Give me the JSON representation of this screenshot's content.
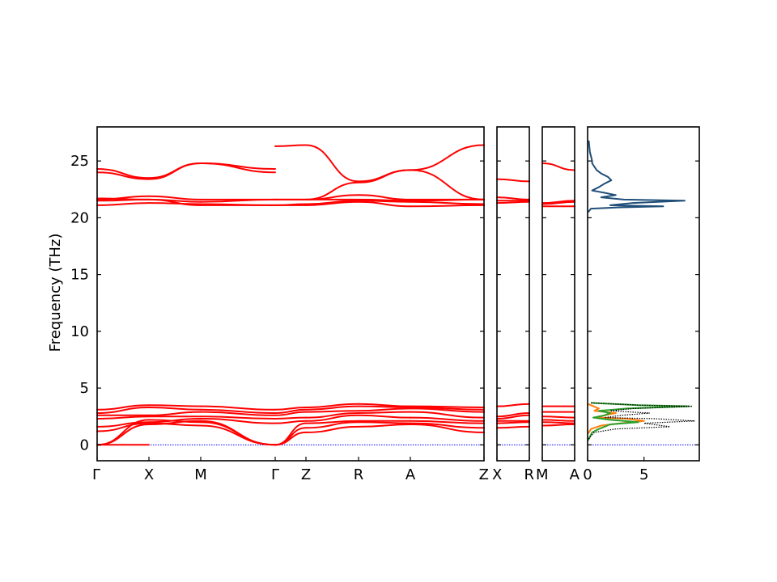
{
  "chart_data": {
    "type": "line",
    "title": "",
    "ylabel": "Frequency (THz)",
    "ylim": [
      -1.4,
      28
    ],
    "yticks": [
      0,
      5,
      10,
      15,
      20,
      25
    ],
    "band_color": "#ff0000",
    "zero_line_color": "#0000ff",
    "panels": [
      {
        "ticks": [
          "Γ",
          "X",
          "M",
          "Γ",
          "Z",
          "R",
          "A",
          "Z"
        ],
        "segments": [
          {
            "from": "Γ",
            "to": "X",
            "bands": [
              [
                0.0,
                0.0
              ],
              [
                0.0,
                1.8
              ],
              [
                0.0,
                2.2
              ],
              [
                1.2,
                1.9
              ],
              [
                1.6,
                2.0
              ],
              [
                2.3,
                2.5
              ],
              [
                2.6,
                2.6
              ],
              [
                2.8,
                3.3
              ],
              [
                3.1,
                3.5
              ],
              [
                21.1,
                21.3
              ],
              [
                21.5,
                21.6
              ],
              [
                21.6,
                21.9
              ],
              [
                21.7,
                21.6
              ],
              [
                24.0,
                23.4
              ],
              [
                24.3,
                23.5
              ]
            ]
          },
          {
            "from": "X",
            "to": "M",
            "bands": [
              [
                1.8,
                2.1
              ],
              [
                2.2,
                2.0
              ],
              [
                1.9,
                1.7
              ],
              [
                2.0,
                2.3
              ],
              [
                2.5,
                2.5
              ],
              [
                2.6,
                2.9
              ],
              [
                3.3,
                3.1
              ],
              [
                3.5,
                3.4
              ],
              [
                21.3,
                21.2
              ],
              [
                21.6,
                21.1
              ],
              [
                21.9,
                21.6
              ],
              [
                21.6,
                21.4
              ],
              [
                23.4,
                24.8
              ],
              [
                23.5,
                24.8
              ]
            ]
          },
          {
            "from": "M",
            "to": "Γ",
            "bands": [
              [
                2.1,
                0.0
              ],
              [
                2.0,
                0.0
              ],
              [
                1.7,
                0.0
              ],
              [
                2.3,
                1.9
              ],
              [
                2.5,
                2.3
              ],
              [
                2.9,
                2.6
              ],
              [
                3.1,
                2.8
              ],
              [
                3.4,
                3.1
              ],
              [
                21.2,
                21.1
              ],
              [
                21.1,
                21.1
              ],
              [
                21.6,
                21.6
              ],
              [
                21.4,
                21.6
              ],
              [
                24.8,
                24.0
              ],
              [
                24.8,
                24.3
              ]
            ]
          },
          {
            "from": "Γ",
            "to": "Z",
            "bands": [
              [
                0.0,
                1.1
              ],
              [
                0.0,
                1.5
              ],
              [
                0.0,
                1.9
              ],
              [
                1.9,
                2.1
              ],
              [
                2.3,
                2.4
              ],
              [
                2.6,
                2.9
              ],
              [
                2.8,
                3.1
              ],
              [
                3.1,
                3.3
              ],
              [
                21.1,
                21.1
              ],
              [
                21.1,
                21.2
              ],
              [
                21.6,
                21.6
              ],
              [
                21.6,
                21.6
              ],
              [
                26.3,
                26.4
              ]
            ]
          },
          {
            "from": "Z",
            "to": "R",
            "bands": [
              [
                1.1,
                1.6
              ],
              [
                1.5,
                2.0
              ],
              [
                1.9,
                2.1
              ],
              [
                2.1,
                2.6
              ],
              [
                2.4,
                2.8
              ],
              [
                2.9,
                3.0
              ],
              [
                3.1,
                3.4
              ],
              [
                3.3,
                3.6
              ],
              [
                21.1,
                21.4
              ],
              [
                21.2,
                21.5
              ],
              [
                21.6,
                21.6
              ],
              [
                21.6,
                22.0
              ],
              [
                21.6,
                23.1
              ],
              [
                26.4,
                23.2
              ]
            ]
          },
          {
            "from": "R",
            "to": "A",
            "bands": [
              [
                1.6,
                1.8
              ],
              [
                2.0,
                1.9
              ],
              [
                2.1,
                2.1
              ],
              [
                2.6,
                2.4
              ],
              [
                2.8,
                2.9
              ],
              [
                3.0,
                3.2
              ],
              [
                3.4,
                3.3
              ],
              [
                3.6,
                3.4
              ],
              [
                21.4,
                21.0
              ],
              [
                21.5,
                21.4
              ],
              [
                21.6,
                21.5
              ],
              [
                22.0,
                21.6
              ],
              [
                23.1,
                24.2
              ],
              [
                23.2,
                24.2
              ]
            ]
          },
          {
            "from": "A",
            "to": "Z",
            "bands": [
              [
                1.8,
                1.1
              ],
              [
                1.9,
                1.5
              ],
              [
                2.1,
                1.9
              ],
              [
                2.4,
                2.1
              ],
              [
                2.9,
                2.4
              ],
              [
                3.2,
                2.9
              ],
              [
                3.3,
                3.1
              ],
              [
                3.4,
                3.3
              ],
              [
                21.0,
                21.1
              ],
              [
                21.4,
                21.2
              ],
              [
                21.5,
                21.6
              ],
              [
                21.6,
                21.6
              ],
              [
                24.2,
                21.6
              ],
              [
                24.2,
                26.4
              ]
            ]
          }
        ]
      },
      {
        "ticks": [
          "X",
          "R"
        ],
        "segments": [
          {
            "from": "X",
            "to": "R",
            "bands": [
              [
                1.5,
                1.6
              ],
              [
                1.9,
                2.0
              ],
              [
                2.1,
                2.1
              ],
              [
                2.3,
                2.6
              ],
              [
                2.5,
                2.8
              ],
              [
                3.4,
                3.6
              ],
              [
                21.3,
                21.4
              ],
              [
                21.5,
                21.5
              ],
              [
                21.8,
                21.6
              ],
              [
                23.4,
                23.2
              ]
            ]
          }
        ]
      },
      {
        "ticks": [
          "M",
          "A"
        ],
        "segments": [
          {
            "from": "M",
            "to": "A",
            "bands": [
              [
                1.7,
                1.8
              ],
              [
                2.0,
                1.9
              ],
              [
                2.2,
                2.1
              ],
              [
                2.5,
                2.4
              ],
              [
                2.9,
                2.9
              ],
              [
                3.4,
                3.4
              ],
              [
                21.0,
                21.0
              ],
              [
                21.2,
                21.4
              ],
              [
                21.3,
                21.5
              ],
              [
                24.8,
                24.2
              ]
            ]
          }
        ]
      }
    ],
    "dos": {
      "xlim": [
        0,
        9.9
      ],
      "xticks": [
        0,
        5
      ],
      "curves": [
        {
          "color": "#1f4e79",
          "points": [
            [
              0.1,
              26.8
            ],
            [
              0.2,
              25.8
            ],
            [
              0.4,
              25.0
            ],
            [
              0.4,
              24.8
            ],
            [
              0.8,
              24.2
            ],
            [
              1.2,
              23.9
            ],
            [
              1.8,
              23.6
            ],
            [
              2.1,
              23.3
            ],
            [
              1.5,
              23.0
            ],
            [
              1.0,
              22.7
            ],
            [
              0.4,
              22.4
            ],
            [
              1.5,
              22.2
            ],
            [
              2.5,
              22.0
            ],
            [
              1.2,
              21.8
            ],
            [
              3.2,
              21.6
            ],
            [
              8.6,
              21.5
            ],
            [
              4.0,
              21.3
            ],
            [
              2.0,
              21.1
            ],
            [
              6.7,
              21.0
            ],
            [
              2.5,
              20.9
            ],
            [
              0.3,
              20.8
            ],
            [
              0.05,
              20.5
            ]
          ]
        },
        {
          "color": "#ff7f0e",
          "points": [
            [
              0.05,
              3.6
            ],
            [
              1.0,
              3.2
            ],
            [
              0.6,
              3.0
            ],
            [
              2.5,
              2.8
            ],
            [
              1.5,
              2.6
            ],
            [
              0.8,
              2.4
            ],
            [
              3.5,
              2.3
            ],
            [
              5.0,
              2.1
            ],
            [
              3.0,
              1.9
            ],
            [
              1.2,
              1.7
            ],
            [
              0.3,
              1.4
            ],
            [
              0.05,
              1.0
            ]
          ]
        },
        {
          "color": "#2ca02c",
          "points": [
            [
              0.3,
              3.7
            ],
            [
              4.5,
              3.5
            ],
            [
              9.0,
              3.4
            ],
            [
              3.5,
              3.2
            ],
            [
              1.0,
              3.0
            ],
            [
              2.0,
              2.8
            ],
            [
              1.5,
              2.6
            ],
            [
              0.5,
              2.4
            ],
            [
              2.0,
              2.2
            ],
            [
              4.5,
              2.0
            ],
            [
              2.0,
              1.8
            ],
            [
              1.5,
              1.6
            ],
            [
              1.0,
              1.4
            ],
            [
              0.4,
              1.1
            ],
            [
              0.2,
              0.7
            ],
            [
              0.05,
              0.4
            ]
          ]
        },
        {
          "color": "#000000",
          "total": true,
          "points": [
            [
              0.3,
              3.7
            ],
            [
              4.5,
              3.5
            ],
            [
              9.3,
              3.4
            ],
            [
              4.0,
              3.2
            ],
            [
              2.0,
              3.0
            ],
            [
              5.5,
              2.8
            ],
            [
              3.0,
              2.6
            ],
            [
              1.5,
              2.4
            ],
            [
              6.0,
              2.3
            ],
            [
              9.5,
              2.1
            ],
            [
              5.0,
              1.9
            ],
            [
              7.3,
              1.6
            ],
            [
              2.5,
              1.4
            ],
            [
              0.6,
              1.1
            ],
            [
              0.2,
              0.7
            ],
            [
              0.05,
              0.4
            ]
          ]
        }
      ]
    }
  }
}
